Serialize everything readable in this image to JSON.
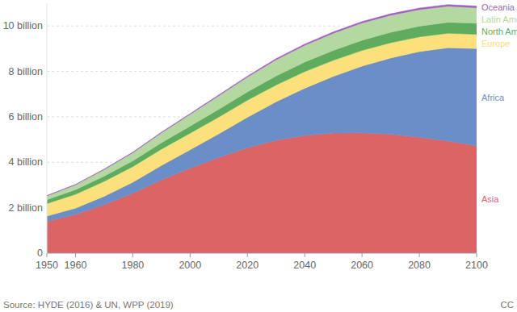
{
  "chart_data": {
    "type": "area",
    "stacked": true,
    "grid": true,
    "x": [
      1950,
      1960,
      1970,
      1980,
      1990,
      2000,
      2010,
      2020,
      2030,
      2040,
      2050,
      2060,
      2070,
      2080,
      2090,
      2100
    ],
    "xlim": [
      1950,
      2100
    ],
    "xticks": [
      1950,
      1960,
      1980,
      2000,
      2020,
      2040,
      2060,
      2080,
      2100
    ],
    "ylim": [
      0,
      11
    ],
    "yticks": [
      0,
      {
        "value": 2,
        "label": "2 billion"
      },
      {
        "value": 4,
        "label": "4 billion"
      },
      {
        "value": 6,
        "label": "6 billion"
      },
      {
        "value": 8,
        "label": "8 billion"
      },
      {
        "value": 10,
        "label": "10 billion"
      }
    ],
    "series": [
      {
        "name": "Asia",
        "color": "#dd6464",
        "values": [
          1.4,
          1.7,
          2.14,
          2.64,
          3.23,
          3.74,
          4.21,
          4.64,
          4.97,
          5.18,
          5.29,
          5.3,
          5.23,
          5.1,
          4.93,
          4.72
        ]
      },
      {
        "name": "Africa",
        "color": "#6a8ec8",
        "values": [
          0.23,
          0.28,
          0.36,
          0.48,
          0.63,
          0.81,
          1.04,
          1.34,
          1.69,
          2.08,
          2.49,
          2.93,
          3.36,
          3.77,
          4.11,
          4.28
        ]
      },
      {
        "name": "Europe",
        "color": "#fbe07c",
        "values": [
          0.55,
          0.61,
          0.66,
          0.69,
          0.72,
          0.73,
          0.74,
          0.75,
          0.74,
          0.73,
          0.71,
          0.69,
          0.67,
          0.65,
          0.64,
          0.63
        ]
      },
      {
        "name": "North America",
        "color": "#5fac5f",
        "values": [
          0.17,
          0.2,
          0.23,
          0.25,
          0.28,
          0.31,
          0.34,
          0.37,
          0.4,
          0.42,
          0.43,
          0.45,
          0.46,
          0.47,
          0.48,
          0.49
        ]
      },
      {
        "name": "Latin America",
        "color": "#b3d9a0",
        "values": [
          0.17,
          0.22,
          0.29,
          0.36,
          0.44,
          0.52,
          0.6,
          0.65,
          0.71,
          0.74,
          0.76,
          0.76,
          0.75,
          0.73,
          0.71,
          0.68
        ]
      },
      {
        "name": "Oceania",
        "color": "#a35fc2",
        "values": [
          0.013,
          0.016,
          0.02,
          0.023,
          0.027,
          0.031,
          0.037,
          0.043,
          0.048,
          0.053,
          0.057,
          0.061,
          0.065,
          0.068,
          0.071,
          0.075
        ]
      }
    ],
    "annotations": [
      "Source: HYDE (2016) & UN, WPP (2019)",
      "CC"
    ]
  }
}
